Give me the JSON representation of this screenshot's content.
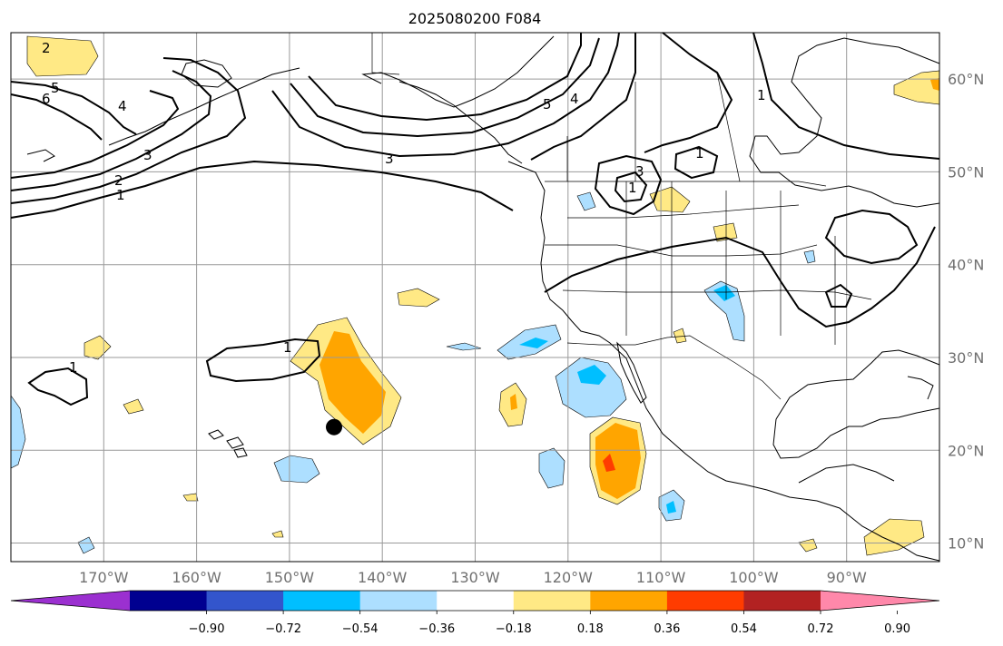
{
  "title": "2025080200 F084",
  "map": {
    "lon_range": [
      -180,
      -80
    ],
    "lat_range": [
      8,
      65
    ],
    "lat_gridlines": [
      10,
      20,
      30,
      40,
      50,
      60
    ],
    "lon_gridlines": [
      -170,
      -160,
      -150,
      -140,
      -130,
      -120,
      -110,
      -100,
      -90
    ],
    "lat_labels": [
      "10°N",
      "20°N",
      "30°N",
      "40°N",
      "50°N",
      "60°N"
    ],
    "lon_labels": [
      "170°W",
      "160°W",
      "150°W",
      "140°W",
      "130°W",
      "120°W",
      "110°W",
      "100°W",
      "90°W"
    ],
    "marker": {
      "lon": -145.2,
      "lat": 22.5,
      "name": "black-dot-marker"
    }
  },
  "contour_labels": [
    "2",
    "5",
    "6",
    "4",
    "3",
    "2",
    "1",
    "3",
    "5",
    "4",
    "1",
    "1",
    "3",
    "1",
    "1",
    "1"
  ],
  "colorbar": {
    "colors": [
      "#9b30d0",
      "#000090",
      "#3355cc",
      "#00bfff",
      "#addfff",
      "#ffffff",
      "#ffe985",
      "#ffa500",
      "#ff3c00",
      "#b22222",
      "#ff88aa"
    ],
    "tick_labels": [
      "−0.90",
      "−0.72",
      "−0.54",
      "−0.36",
      "−0.18",
      "0.18",
      "0.36",
      "0.54",
      "0.72",
      "0.90"
    ]
  }
}
